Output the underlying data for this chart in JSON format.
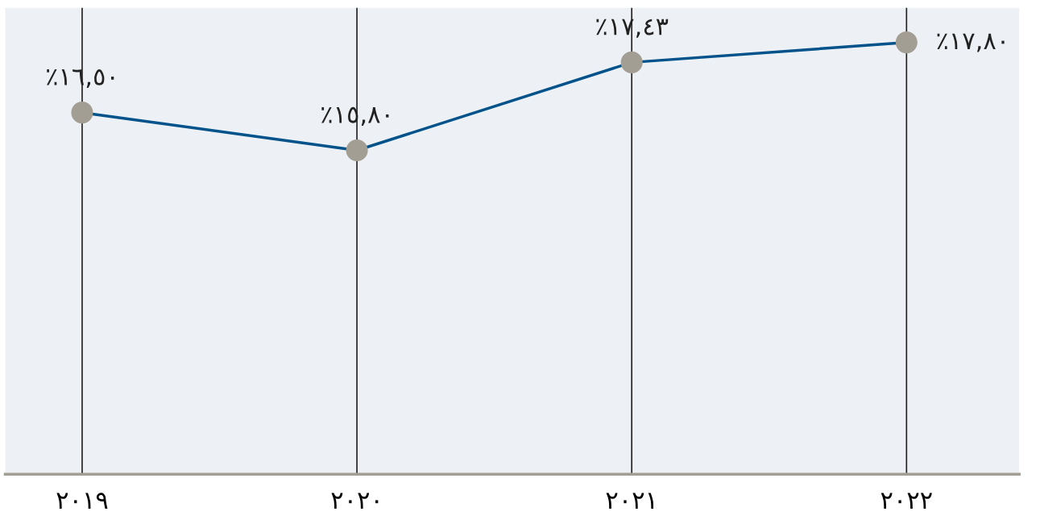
{
  "chart_data": {
    "type": "line",
    "categories": [
      "٢٠١٩",
      "٢٠٢٠",
      "٢٠٢١",
      "٢٠٢٢"
    ],
    "series": [
      {
        "color": "#00538a",
        "colors": [
          "#a39e93",
          "#a39e93",
          "#a39e93",
          "#a39e93"
        ],
        "values": [
          16.5,
          15.8,
          17.43,
          17.8
        ],
        "value_labels": [
          "٪١٦,٥٠",
          "٪١٥,٨٠",
          "٪١٧,٤٣",
          "٪١٧,٨٠"
        ]
      }
    ],
    "marker": "circle",
    "grid": "x",
    "tick_labels": "x"
  }
}
